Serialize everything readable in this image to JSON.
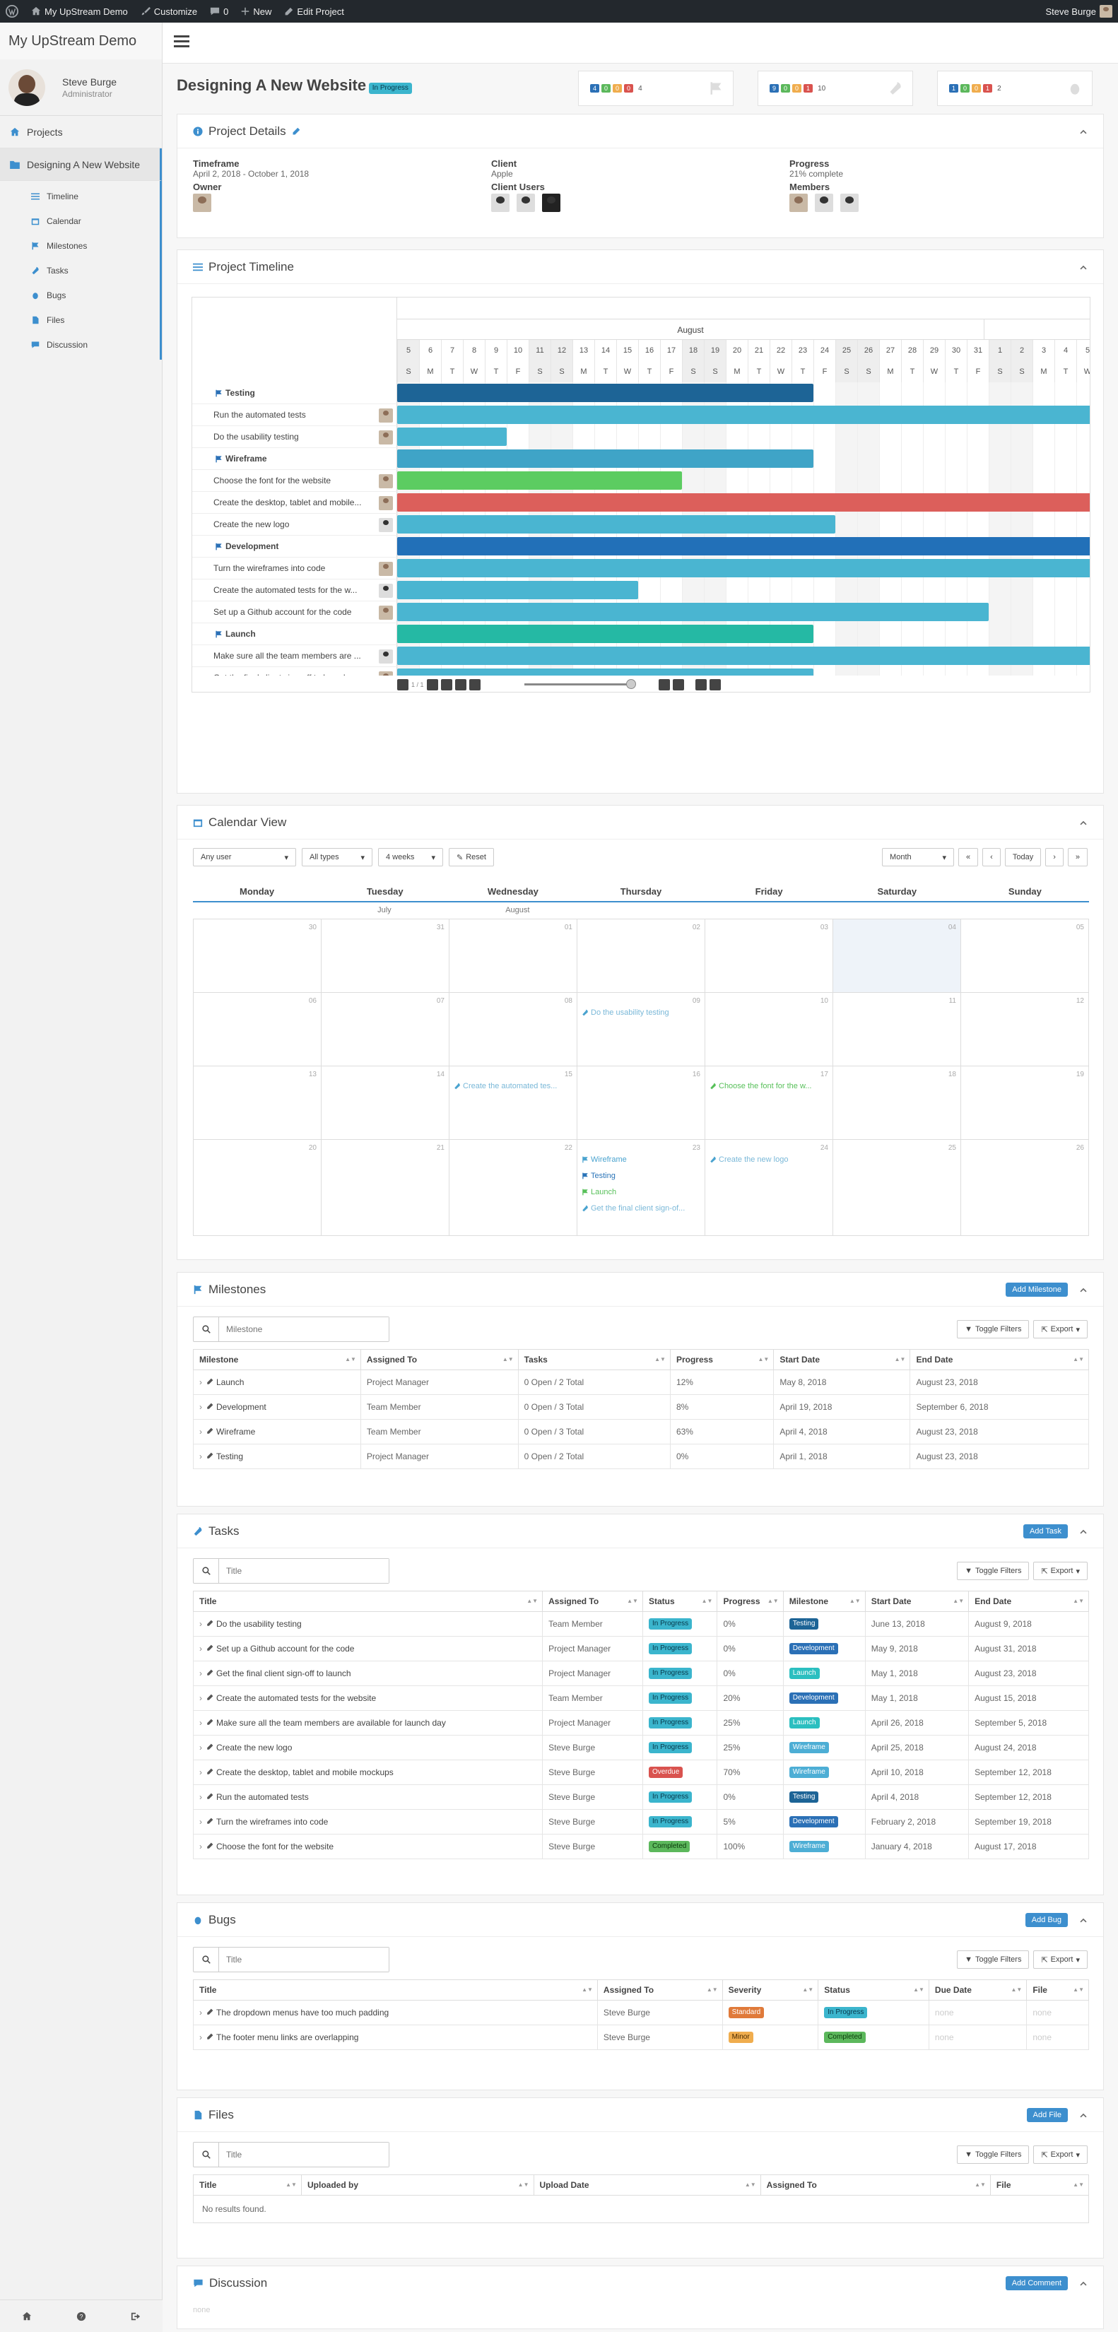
{
  "adminbar": {
    "site": "My UpStream Demo",
    "customize": "Customize",
    "comments": "0",
    "new": "New",
    "edit": "Edit Project",
    "user": "Steve Burge"
  },
  "sidebar": {
    "brand": "My UpStream Demo",
    "user_name": "Steve Burge",
    "user_role": "Administrator",
    "projects": "Projects",
    "current_project": "Designing A New Website",
    "sections": [
      "Timeline",
      "Calendar",
      "Milestones",
      "Tasks",
      "Bugs",
      "Files",
      "Discussion"
    ]
  },
  "header": {
    "title": "Designing A New Website",
    "status": "In Progress",
    "counters": [
      {
        "nums": [
          "4",
          "0",
          "0",
          "0"
        ],
        "total": "4",
        "icon": "flag-icon"
      },
      {
        "nums": [
          "9",
          "0",
          "0",
          "1"
        ],
        "total": "10",
        "icon": "wrench-icon"
      },
      {
        "nums": [
          "1",
          "0",
          "0",
          "1"
        ],
        "total": "2",
        "icon": "bug-icon"
      }
    ]
  },
  "details": {
    "title": "Project Details",
    "timeframe_label": "Timeframe",
    "timeframe": "April 2, 2018 - October 1, 2018",
    "owner_label": "Owner",
    "client_label": "Client",
    "client": "Apple",
    "client_users_label": "Client Users",
    "progress_label": "Progress",
    "progress": "21% complete",
    "members_label": "Members"
  },
  "timeline": {
    "title": "Project Timeline",
    "month": "August",
    "days": [
      "5",
      "6",
      "7",
      "8",
      "9",
      "10",
      "11",
      "12",
      "13",
      "14",
      "15",
      "16",
      "17",
      "18",
      "19",
      "20",
      "21",
      "22",
      "23",
      "24",
      "25",
      "26",
      "27",
      "28",
      "29",
      "30",
      "31",
      "1",
      "2",
      "3",
      "4",
      "5"
    ],
    "weekdays": [
      "S",
      "M",
      "T",
      "W",
      "T",
      "F",
      "S",
      "S",
      "M",
      "T",
      "W",
      "T",
      "F",
      "S",
      "S",
      "M",
      "T",
      "W",
      "T",
      "F",
      "S",
      "S",
      "M",
      "T",
      "W",
      "T",
      "F",
      "S",
      "S",
      "M",
      "T",
      "W"
    ],
    "pager": "1 / 1",
    "rows": [
      {
        "label": "Testing",
        "type": "milestone",
        "end": 19,
        "color": "#1d6496"
      },
      {
        "label": "Run the automated tests",
        "type": "task",
        "end": 32,
        "color": "#4ab5d1"
      },
      {
        "label": "Do the usability testing",
        "type": "task",
        "end": 5,
        "color": "#4ab5d1"
      },
      {
        "label": "Wireframe",
        "type": "milestone",
        "end": 19,
        "color": "#3fa4c7"
      },
      {
        "label": "Choose the font for the website",
        "type": "task",
        "end": 13,
        "color": "#5ccc61"
      },
      {
        "label": "Create the desktop, tablet and mobile...",
        "type": "task",
        "end": 32,
        "color": "#dc5f5b"
      },
      {
        "label": "Create the new logo",
        "type": "task",
        "end": 20,
        "color": "#4ab5d1"
      },
      {
        "label": "Development",
        "type": "milestone",
        "end": 32,
        "color": "#2270b8"
      },
      {
        "label": "Turn the wireframes into code",
        "type": "task",
        "end": 32,
        "color": "#4ab5d1"
      },
      {
        "label": "Create the automated tests for the w...",
        "type": "task",
        "end": 11,
        "color": "#4ab5d1"
      },
      {
        "label": "Set up a Github account for the code",
        "type": "task",
        "end": 27,
        "color": "#4ab5d1"
      },
      {
        "label": "Launch",
        "type": "milestone",
        "end": 19,
        "color": "#25b9a4"
      },
      {
        "label": "Make sure all the team members are ...",
        "type": "task",
        "end": 32,
        "color": "#4ab5d1"
      },
      {
        "label": "Get the final client sign-off to launch",
        "type": "task",
        "end": 19,
        "color": "#4ab5d1"
      }
    ]
  },
  "calendar": {
    "title": "Calendar View",
    "user_filter": "Any user",
    "type_filter": "All types",
    "range_filter": "4 weeks",
    "reset": "Reset",
    "view": "Month",
    "today": "Today",
    "weekdays": [
      "Monday",
      "Tuesday",
      "Wednesday",
      "Thursday",
      "Friday",
      "Saturday",
      "Sunday"
    ],
    "month_labels": [
      {
        "col": 1,
        "text": "July"
      },
      {
        "col": 2,
        "text": "August"
      }
    ],
    "weeks": [
      [
        {
          "d": "30"
        },
        {
          "d": "31"
        },
        {
          "d": "01"
        },
        {
          "d": "02"
        },
        {
          "d": "03"
        },
        {
          "d": "04",
          "today": true
        },
        {
          "d": "05"
        }
      ],
      [
        {
          "d": "06"
        },
        {
          "d": "07"
        },
        {
          "d": "08"
        },
        {
          "d": "09",
          "ev": [
            {
              "t": "Do the usability testing",
              "c": "tk",
              "i": "wrench"
            }
          ]
        },
        {
          "d": "10"
        },
        {
          "d": "11"
        },
        {
          "d": "12"
        }
      ],
      [
        {
          "d": "13"
        },
        {
          "d": "14"
        },
        {
          "d": "15",
          "ev": [
            {
              "t": "Create the automated tes...",
              "c": "tk",
              "i": "wrench"
            }
          ]
        },
        {
          "d": "16"
        },
        {
          "d": "17",
          "ev": [
            {
              "t": "Choose the font for the w...",
              "c": "green",
              "i": "wrench"
            }
          ]
        },
        {
          "d": "18"
        },
        {
          "d": "19"
        }
      ],
      [
        {
          "d": "20"
        },
        {
          "d": "21"
        },
        {
          "d": "22"
        },
        {
          "d": "23",
          "ev": [
            {
              "t": "Wireframe",
              "c": "",
              "i": "flag"
            },
            {
              "t": "Testing",
              "c": "blue",
              "i": "flag"
            },
            {
              "t": "Launch",
              "c": "green",
              "i": "flag"
            },
            {
              "t": "Get the final client sign-of...",
              "c": "tk",
              "i": "wrench"
            }
          ]
        },
        {
          "d": "24",
          "ev": [
            {
              "t": "Create the new logo",
              "c": "tk",
              "i": "wrench"
            }
          ]
        },
        {
          "d": "25"
        },
        {
          "d": "26"
        }
      ]
    ]
  },
  "milestones": {
    "title": "Milestones",
    "add": "Add Milestone",
    "search": "Milestone",
    "toggle": "Toggle Filters",
    "export": "Export",
    "cols": [
      "Milestone",
      "Assigned To",
      "Tasks",
      "Progress",
      "Start Date",
      "End Date"
    ],
    "rows": [
      [
        "Launch",
        "Project Manager",
        "0 Open / 2 Total",
        "12%",
        "May 8, 2018",
        "August 23, 2018"
      ],
      [
        "Development",
        "Team Member",
        "0 Open / 3 Total",
        "8%",
        "April 19, 2018",
        "September 6, 2018"
      ],
      [
        "Wireframe",
        "Team Member",
        "0 Open / 3 Total",
        "63%",
        "April 4, 2018",
        "August 23, 2018"
      ],
      [
        "Testing",
        "Project Manager",
        "0 Open / 2 Total",
        "0%",
        "April 1, 2018",
        "August 23, 2018"
      ]
    ]
  },
  "tasks": {
    "title": "Tasks",
    "add": "Add Task",
    "search": "Title",
    "toggle": "Toggle Filters",
    "export": "Export",
    "cols": [
      "Title",
      "Assigned To",
      "Status",
      "Progress",
      "Milestone",
      "Start Date",
      "End Date"
    ],
    "rows": [
      [
        "Do the usability testing",
        "Team Member",
        "In Progress",
        "0%",
        "Testing",
        "June 13, 2018",
        "August 9, 2018"
      ],
      [
        "Set up a Github account for the code",
        "Project Manager",
        "In Progress",
        "0%",
        "Development",
        "May 9, 2018",
        "August 31, 2018"
      ],
      [
        "Get the final client sign-off to launch",
        "Project Manager",
        "In Progress",
        "0%",
        "Launch",
        "May 1, 2018",
        "August 23, 2018"
      ],
      [
        "Create the automated tests for the website",
        "Team Member",
        "In Progress",
        "20%",
        "Development",
        "May 1, 2018",
        "August 15, 2018"
      ],
      [
        "Make sure all the team members are available for launch day",
        "Project Manager",
        "In Progress",
        "25%",
        "Launch",
        "April 26, 2018",
        "September 5, 2018"
      ],
      [
        "Create the new logo",
        "Steve Burge",
        "In Progress",
        "25%",
        "Wireframe",
        "April 25, 2018",
        "August 24, 2018"
      ],
      [
        "Create the desktop, tablet and mobile mockups",
        "Steve Burge",
        "Overdue",
        "70%",
        "Wireframe",
        "April 10, 2018",
        "September 12, 2018"
      ],
      [
        "Run the automated tests",
        "Steve Burge",
        "In Progress",
        "0%",
        "Testing",
        "April 4, 2018",
        "September 12, 2018"
      ],
      [
        "Turn the wireframes into code",
        "Steve Burge",
        "In Progress",
        "5%",
        "Development",
        "February 2, 2018",
        "September 19, 2018"
      ],
      [
        "Choose the font for the website",
        "Steve Burge",
        "Completed",
        "100%",
        "Wireframe",
        "January 4, 2018",
        "August 17, 2018"
      ]
    ]
  },
  "bugs": {
    "title": "Bugs",
    "add": "Add Bug",
    "search": "Title",
    "toggle": "Toggle Filters",
    "export": "Export",
    "cols": [
      "Title",
      "Assigned To",
      "Severity",
      "Status",
      "Due Date",
      "File"
    ],
    "rows": [
      [
        "The dropdown menus have too much padding",
        "Steve Burge",
        "Standard",
        "In Progress",
        "none",
        "none"
      ],
      [
        "The footer menu links are overlapping",
        "Steve Burge",
        "Minor",
        "Completed",
        "none",
        "none"
      ]
    ]
  },
  "files": {
    "title": "Files",
    "add": "Add File",
    "search": "Title",
    "toggle": "Toggle Filters",
    "export": "Export",
    "cols": [
      "Title",
      "Uploaded by",
      "Upload Date",
      "Assigned To",
      "File"
    ],
    "empty": "No results found."
  },
  "discussion": {
    "title": "Discussion",
    "add": "Add Comment",
    "empty": "none"
  }
}
